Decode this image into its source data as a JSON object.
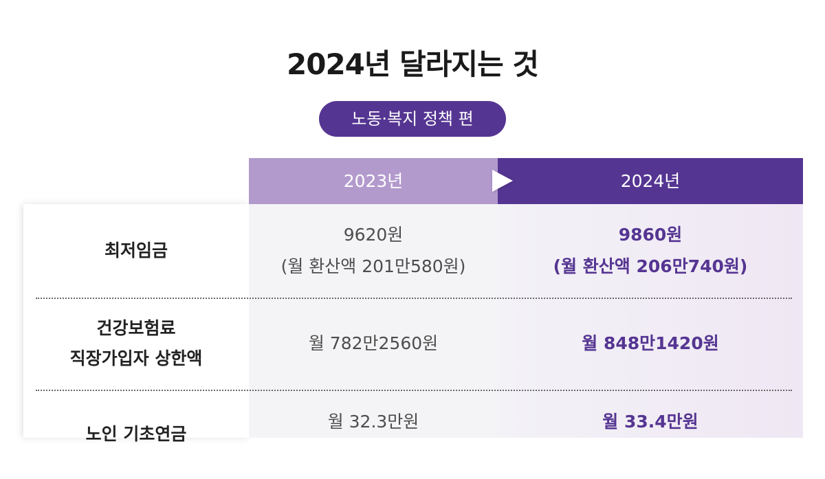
{
  "title": "2024년 달라지는 것",
  "category": "노동·복지 정책 편",
  "columns": {
    "y2023": "2023년",
    "y2024": "2024년"
  },
  "rows": [
    {
      "label": [
        "최저임금"
      ],
      "v2023": [
        "9620원",
        "(월 환산액 201만580원)"
      ],
      "v2024": [
        "9860원",
        "(월 환산액 206만740원)"
      ]
    },
    {
      "label": [
        "건강보험료",
        "직장가입자 상한액"
      ],
      "v2023": [
        "월 782만2560원"
      ],
      "v2024": [
        "월 848만1420원"
      ]
    },
    {
      "label": [
        "노인 기초연금"
      ],
      "v2023": [
        "월 32.3만원"
      ],
      "v2024": [
        "월 33.4만원"
      ]
    }
  ],
  "colors": {
    "accent": "#553592",
    "accent_light": "#b39acd"
  }
}
